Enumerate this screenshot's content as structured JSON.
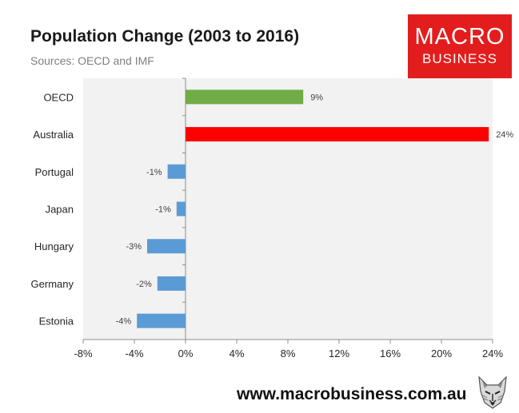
{
  "header": {
    "title": "Population Change (2003 to 2016)",
    "subtitle": "Sources: OECD and IMF"
  },
  "logo": {
    "line1": "MACRO",
    "line2": "BUSINESS",
    "color": "#e31d1d"
  },
  "footer": {
    "url": "www.macrobusiness.com.au",
    "mascot_icon": "wolf-icon"
  },
  "chart_data": {
    "type": "bar",
    "orientation": "horizontal",
    "title": "Population Change (2003 to 2016)",
    "subtitle": "Sources: OECD and IMF",
    "xlabel": "",
    "ylabel": "",
    "categories": [
      "OECD",
      "Australia",
      "Portugal",
      "Japan",
      "Hungary",
      "Germany",
      "Estonia"
    ],
    "values": [
      9.2,
      23.7,
      -1.4,
      -0.7,
      -3.0,
      -2.2,
      -3.8
    ],
    "data_labels": [
      "9%",
      "24%",
      "-1%",
      "-1%",
      "-3%",
      "-2%",
      "-4%"
    ],
    "colors": [
      "#70ad47",
      "#ff0000",
      "#5b9bd5",
      "#5b9bd5",
      "#5b9bd5",
      "#5b9bd5",
      "#5b9bd5"
    ],
    "xlim": [
      -8,
      24
    ],
    "xticks": [
      -8,
      -4,
      0,
      4,
      8,
      12,
      16,
      20,
      24
    ],
    "xtick_labels": [
      "-8%",
      "-4%",
      "0%",
      "4%",
      "8%",
      "12%",
      "16%",
      "20%",
      "24%"
    ],
    "grid": false,
    "plot_background": "#f2f2f2"
  }
}
